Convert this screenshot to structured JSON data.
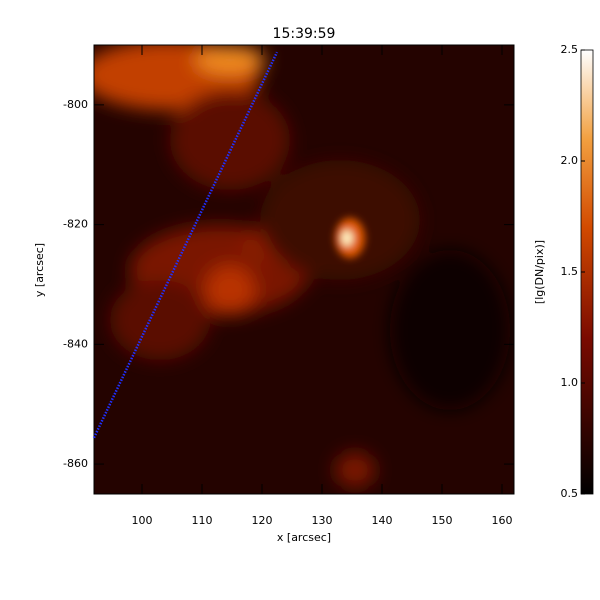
{
  "chart_data": {
    "type": "image",
    "title": "15:39:59",
    "x_label": "x [arcsec]",
    "y_label": "y [arcsec]",
    "xlim": [
      92,
      162
    ],
    "xticks": [
      100,
      110,
      120,
      130,
      140,
      150,
      160
    ],
    "ylim": [
      -865,
      -790
    ],
    "yticks": [
      -800,
      -820,
      -840,
      -860
    ],
    "slit": {
      "color": "#2030ff",
      "x": [
        92,
        122.5
      ],
      "y": [
        -855.6,
        -791.2
      ]
    },
    "colorbar": {
      "label": "[lg(DN/pix)]",
      "lim": [
        0.5,
        2.5
      ],
      "ticks": [
        0.5,
        {
          "value": 1,
          "label": "1.0"
        },
        1.5,
        {
          "value": 2,
          "label": "2.0"
        },
        2.5
      ]
    }
  }
}
